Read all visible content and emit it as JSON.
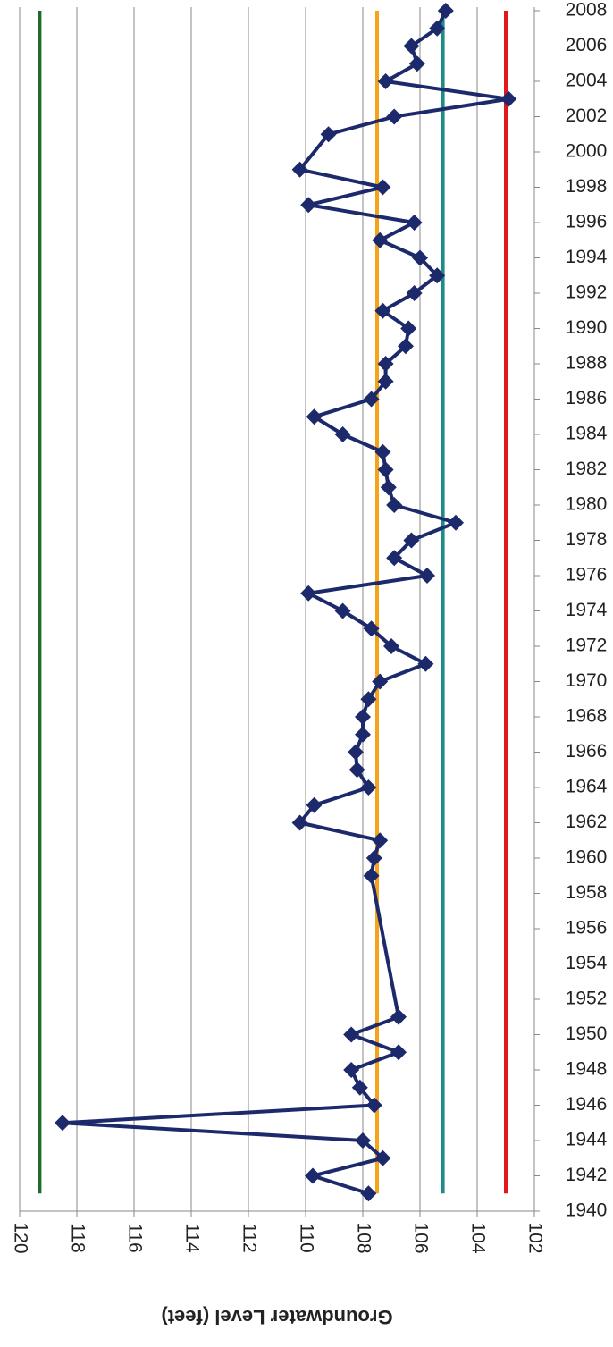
{
  "chart_data": {
    "type": "line",
    "y_label": "Groundwater Level (feet)",
    "x": [
      1941,
      1942,
      1943,
      1944,
      1945,
      1946,
      1947,
      1948,
      1949,
      1950,
      1951,
      1959,
      1960,
      1961,
      1962,
      1963,
      1964,
      1965,
      1966,
      1967,
      1968,
      1969,
      1970,
      1971,
      1972,
      1973,
      1974,
      1975,
      1976,
      1977,
      1978,
      1979,
      1980,
      1981,
      1982,
      1983,
      1984,
      1985,
      1986,
      1987,
      1988,
      1989,
      1990,
      1991,
      1992,
      1993,
      1994,
      1995,
      1996,
      1997,
      1998,
      1999,
      2001,
      2002,
      2003,
      2004,
      2005,
      2006,
      2007,
      2008
    ],
    "series": [
      {
        "color": "#1c2a6b",
        "values": [
          107.8,
          109.75,
          107.3,
          108.0,
          118.5,
          107.6,
          108.1,
          108.4,
          106.75,
          108.4,
          106.75,
          107.7,
          107.6,
          107.4,
          110.2,
          109.7,
          107.8,
          108.2,
          108.25,
          108.0,
          108.0,
          107.8,
          107.4,
          105.8,
          107.0,
          107.7,
          108.7,
          109.9,
          105.75,
          106.9,
          106.3,
          104.75,
          106.9,
          107.1,
          107.2,
          107.3,
          108.7,
          109.7,
          107.7,
          107.2,
          107.2,
          106.5,
          106.4,
          107.3,
          106.2,
          105.4,
          106.0,
          107.4,
          106.2,
          109.9,
          107.3,
          110.2,
          109.2,
          106.9,
          102.9,
          107.2,
          106.1,
          106.3,
          105.4,
          105.1
        ]
      }
    ],
    "reference_lines": [
      {
        "color": "#1e6b2a",
        "value": 119.3
      },
      {
        "color": "#f5a31a",
        "value": 107.5
      },
      {
        "color": "#1f8a8a",
        "value": 105.2
      },
      {
        "color": "#e0181b",
        "value": 103.0
      }
    ],
    "xlim": [
      1940,
      2008
    ],
    "xticks": [
      1940,
      1942,
      1944,
      1946,
      1948,
      1950,
      1952,
      1954,
      1956,
      1958,
      1960,
      1962,
      1964,
      1966,
      1968,
      1970,
      1972,
      1974,
      1976,
      1978,
      1980,
      1982,
      1984,
      1986,
      1988,
      1990,
      1992,
      1994,
      1996,
      1998,
      2000,
      2002,
      2004,
      2006,
      2008
    ],
    "ylim": [
      102,
      120
    ],
    "yticks": [
      102,
      104,
      106,
      108,
      110,
      112,
      114,
      116,
      118,
      120
    ],
    "y_reversed": true,
    "grid": true
  }
}
